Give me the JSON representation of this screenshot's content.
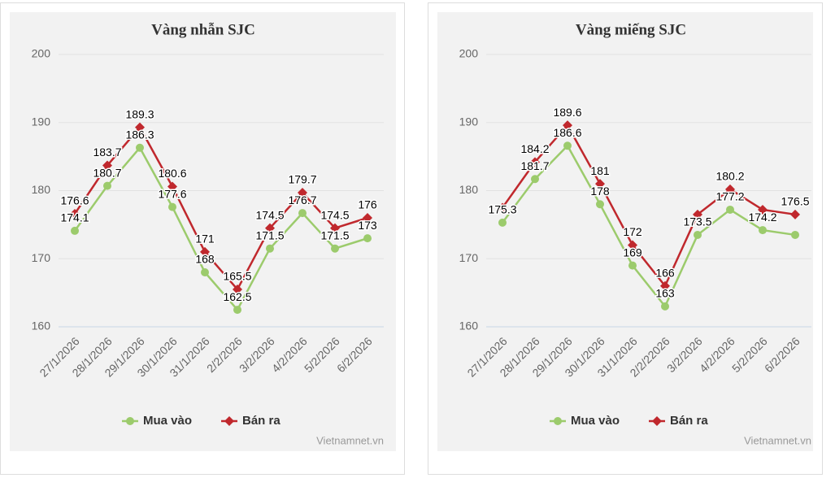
{
  "chart_data": [
    {
      "type": "line",
      "title": "Vàng nhẫn SJC",
      "categories": [
        "27/1/2026",
        "28/1/2026",
        "29/1/2026",
        "30/1/2026",
        "31/1/2026",
        "2/2/2026",
        "3/2/2026",
        "4/2/2026",
        "5/2/2026",
        "6/2/2026"
      ],
      "series": [
        {
          "name": "Mua vào",
          "color": "#9ccb6c",
          "values": [
            174.1,
            180.7,
            186.3,
            177.6,
            168,
            162.5,
            171.5,
            176.7,
            171.5,
            173
          ],
          "value_labels": [
            "174.1",
            "180.7",
            "186.3",
            "177.6",
            "168",
            "162.5",
            "171.5",
            "176.7",
            "171.5",
            "173"
          ]
        },
        {
          "name": "Bán ra",
          "color": "#c0282d",
          "values": [
            176.6,
            183.7,
            189.3,
            180.6,
            171,
            165.5,
            174.5,
            179.7,
            174.5,
            176
          ],
          "value_labels": [
            "176.6",
            "183.7",
            "189.3",
            "180.6",
            "171",
            "165.5",
            "174.5",
            "179.7",
            "174.5",
            "176"
          ]
        }
      ],
      "ylim": [
        160,
        200
      ],
      "yticks": [
        160,
        170,
        180,
        190,
        200
      ],
      "grid": true,
      "source": "Vietnamnet.vn"
    },
    {
      "type": "line",
      "title": "Vàng miếng SJC",
      "categories": [
        "27/1/2026",
        "28/1/2026",
        "29/1/2026",
        "30/1/2026",
        "31/1/2026",
        "2/2/22026",
        "3/2/2026",
        "4/2/2026",
        "5/2/2026",
        "6/2/2026"
      ],
      "series": [
        {
          "name": "Mua vào",
          "color": "#9ccb6c",
          "values": [
            175.3,
            181.7,
            186.6,
            178,
            169,
            163,
            173.5,
            177.2,
            174.2,
            173.5
          ],
          "value_labels": [
            "175.3",
            "181.7",
            "186.6",
            "178",
            "169",
            "163",
            "173.5",
            "177.2",
            "174.2",
            null
          ]
        },
        {
          "name": "Bán ra",
          "color": "#c0282d",
          "values": [
            177.5,
            184.2,
            189.6,
            181,
            172,
            166,
            176.5,
            180.2,
            177.2,
            176.5
          ],
          "value_labels": [
            null,
            "184.2",
            "189.6",
            "181",
            "172",
            "166",
            null,
            "180.2",
            null,
            "176.5"
          ]
        }
      ],
      "ylim": [
        160,
        200
      ],
      "yticks": [
        160,
        170,
        180,
        190,
        200
      ],
      "grid": true,
      "source": "Vietnamnet.vn"
    }
  ]
}
